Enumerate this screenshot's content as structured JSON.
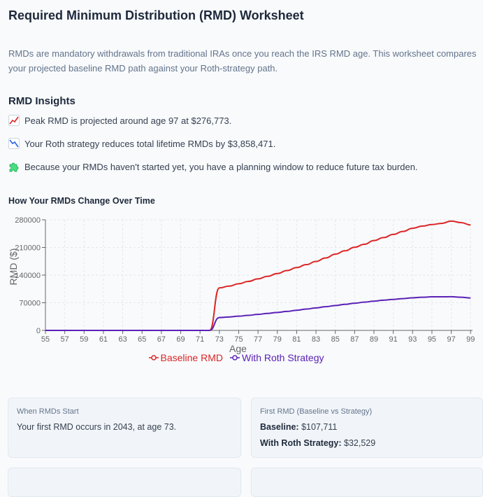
{
  "page": {
    "title": "Required Minimum Distribution (RMD) Worksheet",
    "intro": "RMDs are mandatory withdrawals from traditional IRAs once you reach the IRS RMD age. This worksheet compares your projected baseline RMD path against your Roth-strategy path."
  },
  "insights": {
    "title": "RMD Insights",
    "items": [
      {
        "icon": "chart-up-icon",
        "text": "Peak RMD is projected around age 97 at $276,773."
      },
      {
        "icon": "chart-down-icon",
        "text": "Your Roth strategy reduces total lifetime RMDs by $3,858,471."
      },
      {
        "icon": "puzzle-icon",
        "text": "Because your RMDs haven't started yet, you have a planning window to reduce future tax burden."
      }
    ]
  },
  "chart": {
    "title": "How Your RMDs Change Over Time"
  },
  "chart_data": {
    "type": "line",
    "xlabel": "Age",
    "ylabel": "RMD ($)",
    "ylim": [
      0,
      280000
    ],
    "yticks": [
      "0",
      "70000",
      "140000",
      "210000",
      "280000"
    ],
    "xticks": [
      "55",
      "57",
      "59",
      "61",
      "63",
      "65",
      "67",
      "69",
      "71",
      "73",
      "75",
      "77",
      "79",
      "81",
      "83",
      "85",
      "87",
      "89",
      "91",
      "93",
      "95",
      "97",
      "99"
    ],
    "grid": true,
    "legend_position": "bottom-center",
    "x": [
      55,
      56,
      57,
      58,
      59,
      60,
      61,
      62,
      63,
      64,
      65,
      66,
      67,
      68,
      69,
      70,
      71,
      72,
      73,
      74,
      75,
      76,
      77,
      78,
      79,
      80,
      81,
      82,
      83,
      84,
      85,
      86,
      87,
      88,
      89,
      90,
      91,
      92,
      93,
      94,
      95,
      96,
      97,
      98,
      99
    ],
    "series": [
      {
        "name": "Baseline RMD",
        "color": "#dc2626",
        "values": [
          0,
          0,
          0,
          0,
          0,
          0,
          0,
          0,
          0,
          0,
          0,
          0,
          0,
          0,
          0,
          0,
          0,
          0,
          107711,
          112000,
          118000,
          124000,
          130500,
          137000,
          144000,
          151500,
          159000,
          166500,
          174500,
          183500,
          193000,
          201500,
          210500,
          218000,
          227500,
          235000,
          243000,
          250500,
          258500,
          264000,
          268000,
          271000,
          276773,
          273000,
          267000
        ]
      },
      {
        "name": "With Roth Strategy",
        "color": "#5b21b6",
        "values": [
          0,
          0,
          0,
          0,
          0,
          0,
          0,
          0,
          0,
          0,
          0,
          0,
          0,
          0,
          0,
          0,
          0,
          0,
          32529,
          34000,
          36000,
          38200,
          40500,
          43000,
          45500,
          48000,
          51000,
          54000,
          57000,
          60000,
          63000,
          66000,
          68800,
          71500,
          74000,
          76500,
          78500,
          80500,
          82500,
          84000,
          85000,
          85000,
          85200,
          84000,
          82000
        ]
      }
    ]
  },
  "cards": {
    "when": {
      "label": "When RMDs Start",
      "text": "Your first RMD occurs in 2043, at age 73."
    },
    "first": {
      "label": "First RMD (Baseline vs Strategy)",
      "baseline_label": "Baseline:",
      "baseline_value": "$107,711",
      "strategy_label": "With Roth Strategy:",
      "strategy_value": "$32,529"
    }
  }
}
